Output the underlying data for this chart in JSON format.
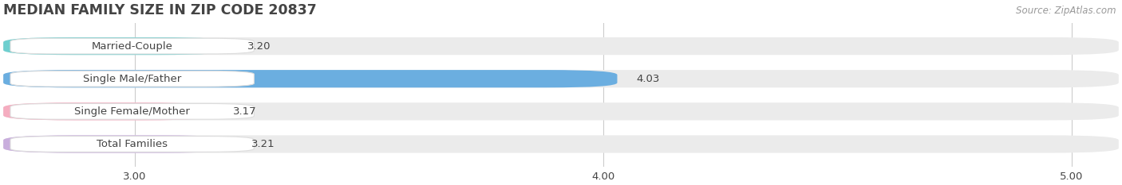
{
  "title": "MEDIAN FAMILY SIZE IN ZIP CODE 20837",
  "source": "Source: ZipAtlas.com",
  "categories": [
    "Married-Couple",
    "Single Male/Father",
    "Single Female/Mother",
    "Total Families"
  ],
  "values": [
    3.2,
    4.03,
    3.17,
    3.21
  ],
  "bar_colors": [
    "#6ecfcf",
    "#6baee0",
    "#f5adc0",
    "#c9aedd"
  ],
  "bar_bg_color": "#ebebeb",
  "xlim_min": 2.72,
  "xlim_max": 5.1,
  "xticks": [
    3.0,
    4.0,
    5.0
  ],
  "xtick_labels": [
    "3.00",
    "4.00",
    "5.00"
  ],
  "label_color": "#444444",
  "title_color": "#444444",
  "source_color": "#999999",
  "background_color": "#ffffff",
  "bar_height": 0.54,
  "label_fontsize": 9.5,
  "title_fontsize": 12.5,
  "value_fontsize": 9.5,
  "grid_color": "#cccccc",
  "label_pill_color": "#ffffff",
  "label_pill_edge": "#dddddd"
}
